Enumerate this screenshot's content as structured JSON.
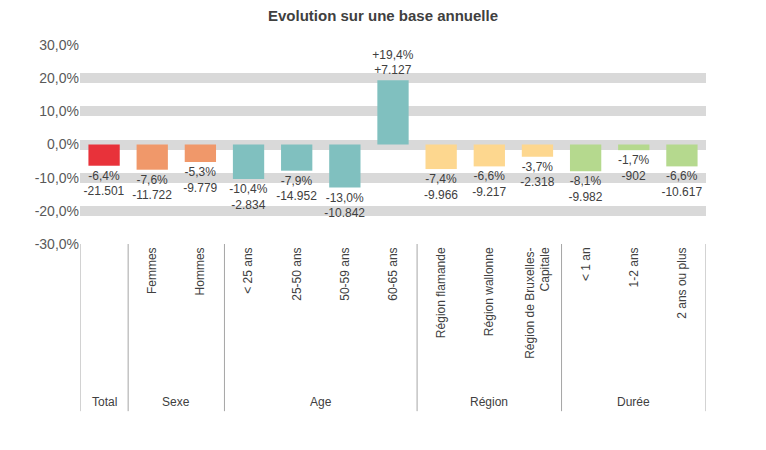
{
  "chart_data": {
    "type": "bar",
    "title": "Evolution sur une base annuelle",
    "categories": [
      null,
      "Femmes",
      "Hommes",
      "< 25 ans",
      "25-50 ans",
      "50-59 ans",
      "60-65 ans",
      "Région flamande",
      "Région wallonne",
      "Région de Bruxelles-\nCapitale",
      "< 1 an",
      "1-2 ans",
      "2 ans ou plus"
    ],
    "groups": [
      "Total",
      "Sexe",
      "Sexe",
      "Age",
      "Age",
      "Age",
      "Age",
      "Région",
      "Région",
      "Région",
      "Durée",
      "Durée",
      "Durée"
    ],
    "values": [
      -6.4,
      -7.6,
      -5.3,
      -10.4,
      -7.9,
      -13.0,
      19.4,
      -7.4,
      -6.6,
      -3.7,
      -8.1,
      -1.7,
      -6.6
    ],
    "value_labels": [
      "-6,4%",
      "-7,6%",
      "-5,3%",
      "-10,4%",
      "-7,9%",
      "-13,0%",
      "+19,4%",
      "-7,4%",
      "-6,6%",
      "-3,7%",
      "-8,1%",
      "-1,7%",
      "-6,6%"
    ],
    "counts": [
      -21501,
      -11722,
      -9779,
      -2834,
      -14952,
      -10842,
      7127,
      -9966,
      -9217,
      -2318,
      -9982,
      -902,
      -10617
    ],
    "count_labels": [
      "-21.501",
      "-11.722",
      "-9.779",
      "-2.834",
      "-14.952",
      "-10.842",
      "+7.127",
      "-9.966",
      "-9.217",
      "-2.318",
      "-9.982",
      "-902",
      "-10.617"
    ],
    "colors": [
      "#e8323a",
      "#f0986a",
      "#f0986a",
      "#80c0bf",
      "#80c0bf",
      "#80c0bf",
      "#80c0bf",
      "#fdd78f",
      "#fdd78f",
      "#fdd78f",
      "#b5d98e",
      "#b5d98e",
      "#b5d98e"
    ],
    "ylim": [
      -30,
      30
    ],
    "yticks": [
      {
        "value": -30,
        "label": "-30,0%"
      },
      {
        "value": -20,
        "label": "-20,0%"
      },
      {
        "value": -10,
        "label": "-10,0%"
      },
      {
        "value": 0,
        "label": "0,0%"
      },
      {
        "value": 10,
        "label": "10,0%"
      },
      {
        "value": 20,
        "label": "20,0%"
      },
      {
        "value": 30,
        "label": "30,0%"
      }
    ],
    "grid": true,
    "data_labels": true
  }
}
